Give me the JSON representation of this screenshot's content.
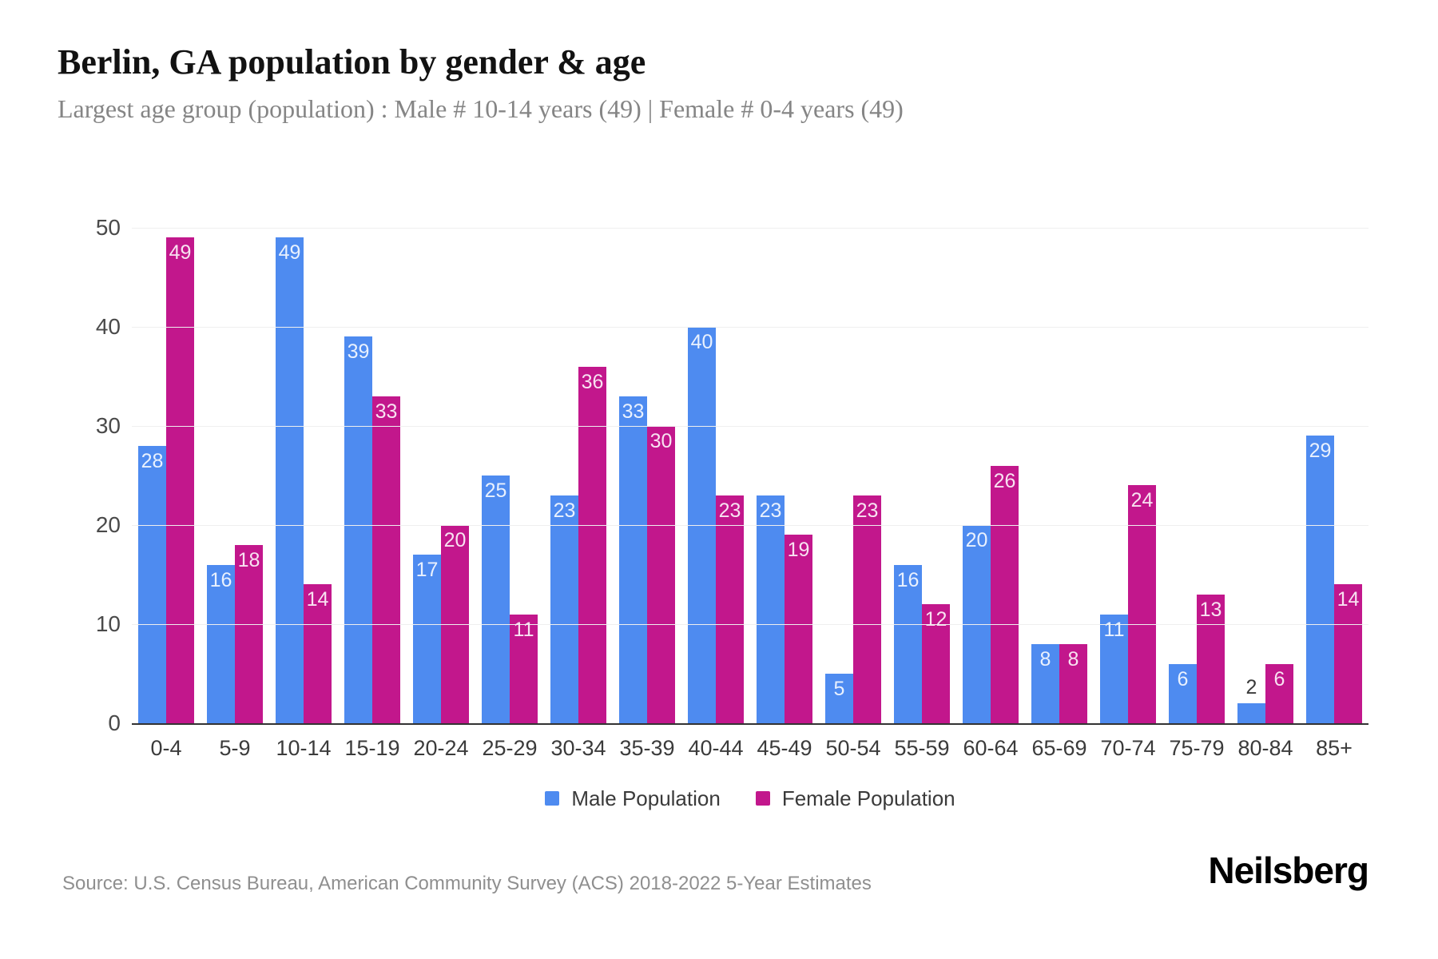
{
  "header": {
    "title": "Berlin, GA population by gender & age",
    "subtitle": "Largest age group (population) : Male # 10-14 years (49) | Female # 0-4 years (49)"
  },
  "chart_data": {
    "type": "bar",
    "title": "Berlin, GA population by gender & age",
    "categories": [
      "0-4",
      "5-9",
      "10-14",
      "15-19",
      "20-24",
      "25-29",
      "30-34",
      "35-39",
      "40-44",
      "45-49",
      "50-54",
      "55-59",
      "60-64",
      "65-69",
      "70-74",
      "75-79",
      "80-84",
      "85+"
    ],
    "series": [
      {
        "name": "Male Population",
        "color": "#4e8bf0",
        "values": [
          28,
          16,
          49,
          39,
          17,
          25,
          23,
          33,
          40,
          23,
          5,
          16,
          20,
          8,
          11,
          6,
          2,
          29
        ]
      },
      {
        "name": "Female Population",
        "color": "#c2178c",
        "values": [
          49,
          18,
          14,
          33,
          20,
          11,
          36,
          30,
          23,
          19,
          23,
          12,
          26,
          8,
          24,
          13,
          6,
          14
        ]
      }
    ],
    "xlabel": "",
    "ylabel": "",
    "ylim": [
      0,
      50
    ],
    "yticks": [
      0,
      10,
      20,
      30,
      40,
      50
    ],
    "grid": true,
    "legend_position": "bottom",
    "value_labels": "inside-top-white"
  },
  "legend": {
    "items": [
      {
        "label": "Male Population",
        "color": "#4e8bf0"
      },
      {
        "label": "Female Population",
        "color": "#c2178c"
      }
    ]
  },
  "footer": {
    "source": "Source: U.S. Census Bureau, American Community Survey (ACS) 2018-2022 5-Year Estimates",
    "brand": "Neilsberg"
  },
  "colors": {
    "male": "#4e8bf0",
    "female": "#c2178c",
    "gridline": "#efefef",
    "axis": "#333333",
    "title": "#121212",
    "subtitle": "#858585",
    "tick_label": "#4a4a4a",
    "source": "#8f8f8f",
    "background": "#ffffff"
  }
}
